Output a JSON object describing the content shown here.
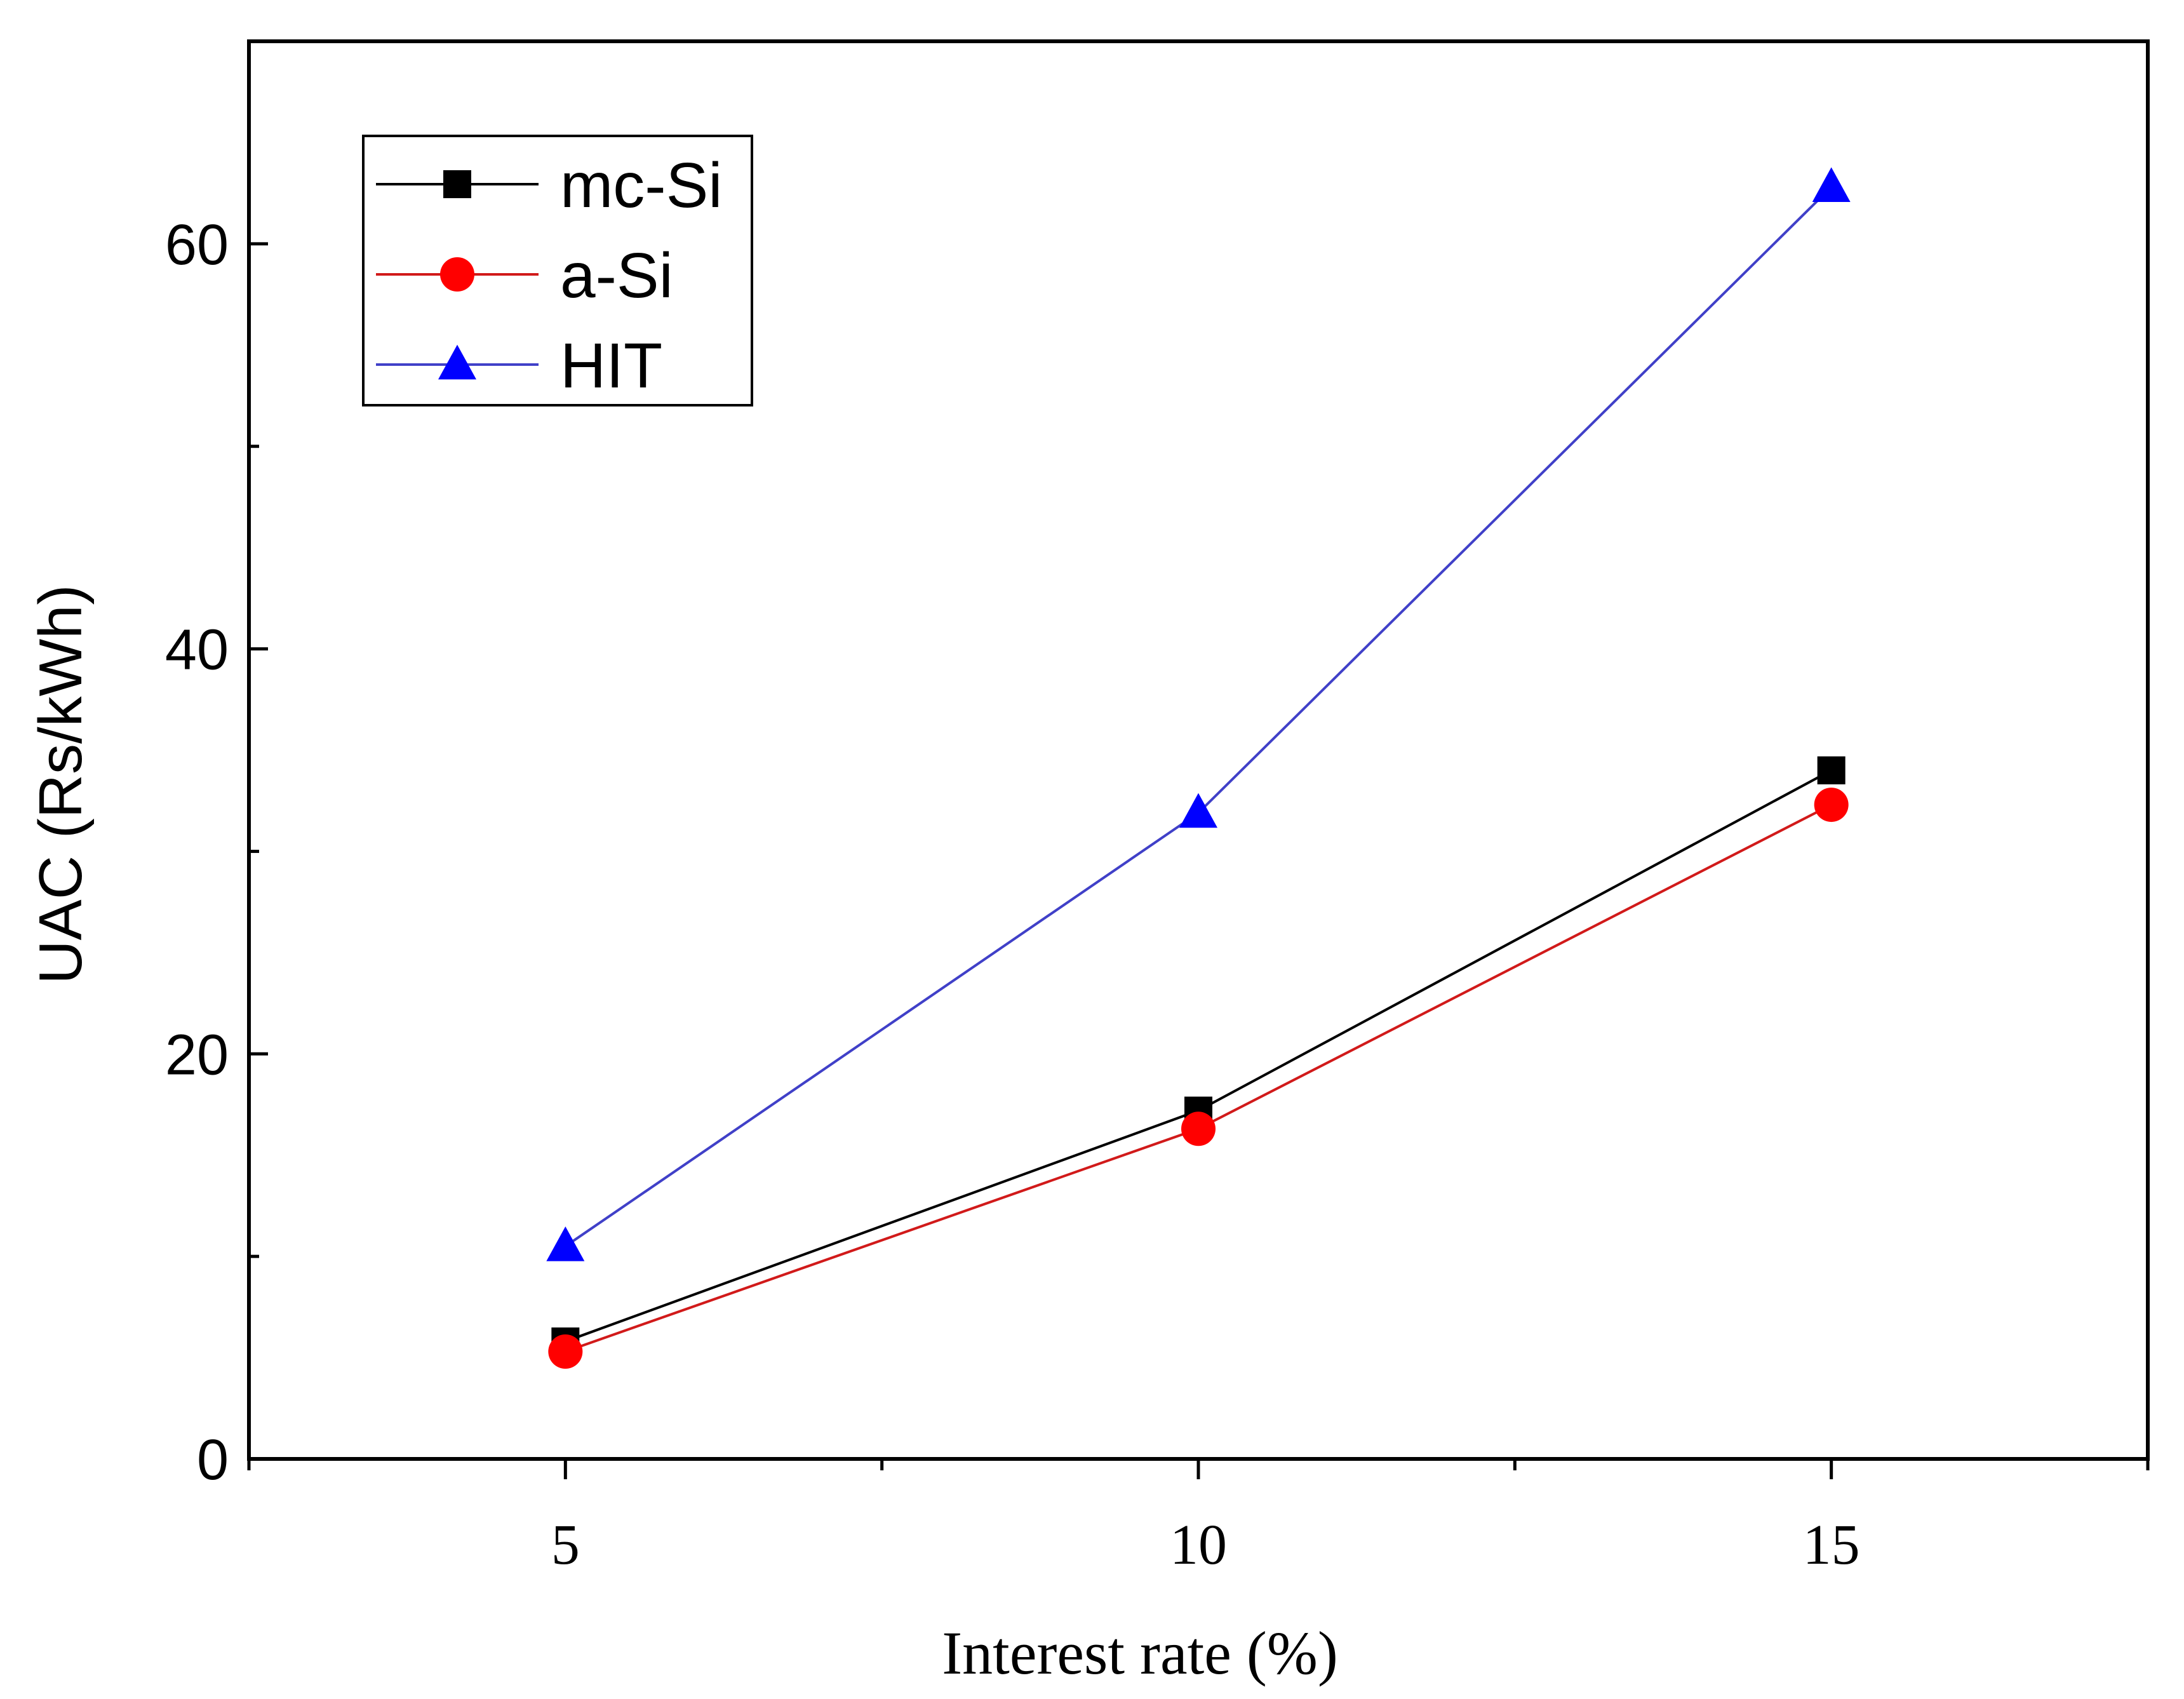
{
  "chart_data": {
    "type": "line",
    "title": "",
    "xlabel": "Interest rate (%)",
    "ylabel": "UAC (Rs/kWh)",
    "x": [
      5,
      10,
      15
    ],
    "xlim": [
      2.5,
      17.5
    ],
    "ylim": [
      0,
      70
    ],
    "xticks": [
      5,
      10,
      15
    ],
    "xtick_labels": [
      "5",
      "10",
      "15"
    ],
    "xminor_ticks": [
      2.5,
      7.5,
      12.5,
      17.5
    ],
    "yticks": [
      0,
      20,
      40,
      60
    ],
    "ytick_labels": [
      "0",
      "20",
      "40",
      "60"
    ],
    "yminor_ticks": [
      10,
      30,
      50
    ],
    "grid": false,
    "legend_position": "top-left",
    "series": [
      {
        "name": "mc-Si",
        "values": [
          5.8,
          17.2,
          34.0
        ],
        "color": "#000000",
        "marker": "square"
      },
      {
        "name": "a-Si",
        "values": [
          5.3,
          16.3,
          32.3
        ],
        "color": "#ff0000",
        "line_color": "#d11a1a",
        "marker": "circle"
      },
      {
        "name": "HIT",
        "values": [
          10.5,
          31.9,
          62.8
        ],
        "color": "#0000ff",
        "line_color": "#4040c8",
        "marker": "triangle"
      }
    ]
  }
}
